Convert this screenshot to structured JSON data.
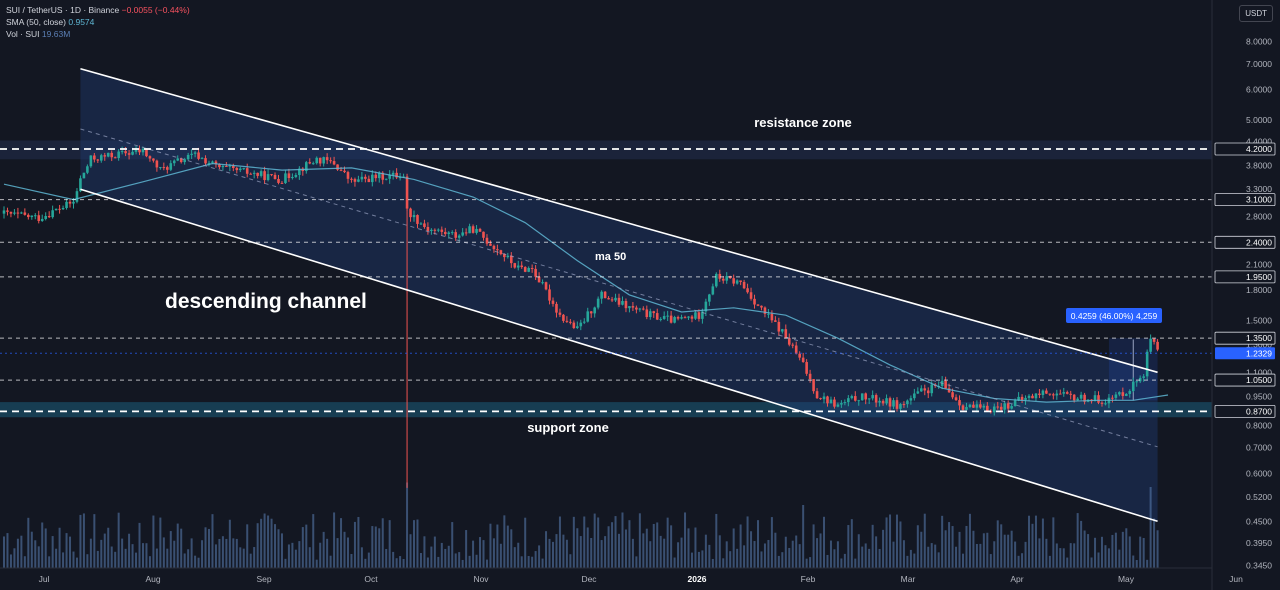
{
  "legend": {
    "symbol": "SUI / TetherUS · 1D · Binance",
    "change": "−0.0055 (−0.44%)",
    "ma_label": "SMA (50, close)",
    "ma_value": "0.9574",
    "vol_label": "Vol · SUI",
    "vol_value": "19.63M"
  },
  "currency": "USDT",
  "annotations": {
    "resistance": "resistance zone",
    "support": "support zone",
    "channel": "descending channel",
    "ma": "ma 50",
    "measure": "0.4259 (46.00%) 4,259"
  },
  "colors": {
    "background": "#131722",
    "up": "#26a69a",
    "down": "#ef5350",
    "ma": "#5fb7d4",
    "channel_fill": "#1e3a6e",
    "support_fill": "#1b5d7a",
    "last_price_tag": "#2962ff",
    "measure_tag": "#2962ff"
  },
  "chart_data": {
    "type": "candlestick",
    "title": "SUI / TetherUS · 1D · Binance",
    "y_scale": "log",
    "ylim": [
      0.34,
      9.0
    ],
    "y_ticks": [
      "0.3450",
      "0.3950",
      "0.4500",
      "0.5200",
      "0.6000",
      "0.7000",
      "0.8000",
      "0.9500",
      "1.1000",
      "1.3000",
      "1.5000",
      "1.8000",
      "2.1000",
      "2.4000",
      "2.8000",
      "3.3000",
      "3.8000",
      "4.4000",
      "5.0000",
      "6.0000",
      "7.0000",
      "8.0000"
    ],
    "x_ticks": [
      "Jul",
      "Aug",
      "Sep",
      "Oct",
      "Nov",
      "Dec",
      "2026",
      "Feb",
      "Mar",
      "Apr",
      "May",
      "Jun"
    ],
    "price_levels": [
      {
        "value": 4.2,
        "label": "4.2000"
      },
      {
        "value": 3.1,
        "label": "3.1000"
      },
      {
        "value": 2.4,
        "label": "2.4000"
      },
      {
        "value": 1.95,
        "label": "1.9500"
      },
      {
        "value": 1.35,
        "label": "1.3500"
      },
      {
        "value": 1.05,
        "label": "1.0500"
      },
      {
        "value": 0.87,
        "label": "0.8700"
      }
    ],
    "last_price": {
      "value": 1.2329,
      "label": "1.2329"
    },
    "resistance_zone": [
      3.95,
      4.42
    ],
    "support_zone": [
      0.84,
      0.92
    ],
    "close_path": [
      {
        "day": 0,
        "close": 2.85
      },
      {
        "day": 10,
        "close": 2.78
      },
      {
        "day": 20,
        "close": 3.05
      },
      {
        "day": 22,
        "close": 3.5
      },
      {
        "day": 25,
        "close": 3.95
      },
      {
        "day": 35,
        "close": 4.1
      },
      {
        "day": 40,
        "close": 4.15
      },
      {
        "day": 45,
        "close": 3.7
      },
      {
        "day": 50,
        "close": 3.9
      },
      {
        "day": 55,
        "close": 4.05
      },
      {
        "day": 62,
        "close": 3.75
      },
      {
        "day": 70,
        "close": 3.65
      },
      {
        "day": 80,
        "close": 3.5
      },
      {
        "day": 90,
        "close": 3.95
      },
      {
        "day": 95,
        "close": 3.85
      },
      {
        "day": 100,
        "close": 3.45
      },
      {
        "day": 107,
        "close": 3.55
      },
      {
        "day": 115,
        "close": 3.6
      },
      {
        "day": 116,
        "close": 2.9
      },
      {
        "day": 122,
        "close": 2.6
      },
      {
        "day": 130,
        "close": 2.5
      },
      {
        "day": 135,
        "close": 2.6
      },
      {
        "day": 142,
        "close": 2.3
      },
      {
        "day": 148,
        "close": 2.05
      },
      {
        "day": 152,
        "close": 2.05
      },
      {
        "day": 160,
        "close": 1.55
      },
      {
        "day": 165,
        "close": 1.42
      },
      {
        "day": 172,
        "close": 1.75
      },
      {
        "day": 180,
        "close": 1.62
      },
      {
        "day": 186,
        "close": 1.55
      },
      {
        "day": 193,
        "close": 1.5
      },
      {
        "day": 200,
        "close": 1.55
      },
      {
        "day": 205,
        "close": 1.95
      },
      {
        "day": 212,
        "close": 1.88
      },
      {
        "day": 218,
        "close": 1.6
      },
      {
        "day": 224,
        "close": 1.4
      },
      {
        "day": 230,
        "close": 1.15
      },
      {
        "day": 234,
        "close": 0.96
      },
      {
        "day": 240,
        "close": 0.9
      },
      {
        "day": 246,
        "close": 0.95
      },
      {
        "day": 252,
        "close": 0.93
      },
      {
        "day": 258,
        "close": 0.9
      },
      {
        "day": 264,
        "close": 0.98
      },
      {
        "day": 270,
        "close": 1.02
      },
      {
        "day": 276,
        "close": 0.9
      },
      {
        "day": 282,
        "close": 0.88
      },
      {
        "day": 288,
        "close": 0.9
      },
      {
        "day": 294,
        "close": 0.94
      },
      {
        "day": 300,
        "close": 0.98
      },
      {
        "day": 306,
        "close": 0.95
      },
      {
        "day": 312,
        "close": 0.94
      },
      {
        "day": 318,
        "close": 0.93
      },
      {
        "day": 324,
        "close": 1.0
      },
      {
        "day": 328,
        "close": 1.1
      },
      {
        "day": 330,
        "close": 1.35
      },
      {
        "day": 332,
        "close": 1.2329
      }
    ],
    "ma50_path": [
      {
        "day": 0,
        "ma": 3.4
      },
      {
        "day": 20,
        "ma": 3.1
      },
      {
        "day": 40,
        "ma": 3.45
      },
      {
        "day": 60,
        "ma": 3.85
      },
      {
        "day": 80,
        "ma": 3.7
      },
      {
        "day": 100,
        "ma": 3.75
      },
      {
        "day": 118,
        "ma": 3.5
      },
      {
        "day": 135,
        "ma": 3.15
      },
      {
        "day": 150,
        "ma": 2.7
      },
      {
        "day": 165,
        "ma": 2.15
      },
      {
        "day": 180,
        "ma": 1.75
      },
      {
        "day": 195,
        "ma": 1.58
      },
      {
        "day": 210,
        "ma": 1.62
      },
      {
        "day": 225,
        "ma": 1.55
      },
      {
        "day": 240,
        "ma": 1.35
      },
      {
        "day": 255,
        "ma": 1.15
      },
      {
        "day": 270,
        "ma": 1.0
      },
      {
        "day": 285,
        "ma": 0.94
      },
      {
        "day": 300,
        "ma": 0.92
      },
      {
        "day": 315,
        "ma": 0.93
      },
      {
        "day": 325,
        "ma": 0.93
      },
      {
        "day": 335,
        "ma": 0.96
      }
    ],
    "channel": {
      "upper": [
        {
          "day": 22,
          "price": 6.8
        },
        {
          "day": 332,
          "price": 1.1
        }
      ],
      "lower": [
        {
          "day": 22,
          "price": 3.3
        },
        {
          "day": 332,
          "price": 0.45
        }
      ]
    },
    "volume_units": "SUI",
    "last_volume": "19.63M"
  }
}
